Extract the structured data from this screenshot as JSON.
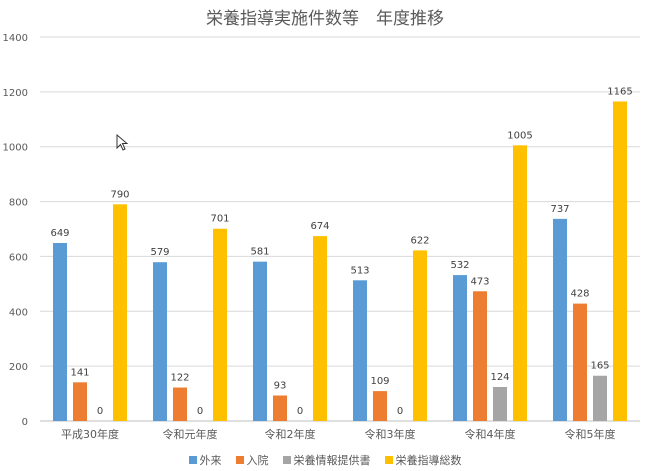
{
  "chart_data": {
    "type": "bar",
    "title": "栄養指導実施件数等　年度推移",
    "categories": [
      "平成30年度",
      "令和元年度",
      "令和2年度",
      "令和3年度",
      "令和4年度",
      "令和5年度"
    ],
    "series": [
      {
        "name": "外来",
        "color": "#5B9BD5",
        "values": [
          649,
          579,
          581,
          513,
          532,
          737
        ]
      },
      {
        "name": "入院",
        "color": "#ED7D31",
        "values": [
          141,
          122,
          93,
          109,
          473,
          428
        ]
      },
      {
        "name": "栄養情報提供書",
        "color": "#A5A5A5",
        "values": [
          0,
          0,
          0,
          0,
          124,
          165
        ]
      },
      {
        "name": "栄養指導総数",
        "color": "#FFC000",
        "values": [
          790,
          701,
          674,
          622,
          1005,
          1165
        ]
      }
    ],
    "ylim": [
      0,
      1400
    ],
    "yticks": [
      0,
      200,
      400,
      600,
      800,
      1000,
      1200,
      1400
    ],
    "grid": true,
    "legend_position": "bottom"
  },
  "colors": {
    "grid": "#D9D9D9",
    "text": "#595959",
    "axis": "#BFBFBF"
  }
}
